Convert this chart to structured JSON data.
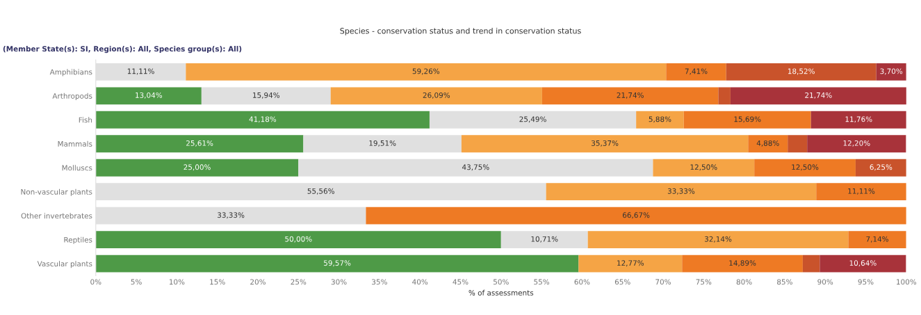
{
  "chart_data": {
    "type": "bar",
    "orientation": "horizontal",
    "stacked": true,
    "title": "Species - conservation status and trend in conservation status",
    "subtitle": "(Member State(s): SI, Region(s): All, Species group(s): All)",
    "xlabel": "% of assessments",
    "categories": [
      "Amphibians",
      "Arthropods",
      "Fish",
      "Mammals",
      "Molluscs",
      "Non-vascular plants",
      "Other invertebrates",
      "Reptiles",
      "Vascular plants"
    ],
    "series": [
      {
        "color": "#4e9a47",
        "values": [
          null,
          13.04,
          41.18,
          25.61,
          25.0,
          null,
          null,
          50.0,
          59.57
        ],
        "value_labels": [
          null,
          "13,04%",
          "41,18%",
          "25,61%",
          "25,00%",
          null,
          null,
          "50,00%",
          "59,57%"
        ]
      },
      {
        "color": "#e0e0e0",
        "values": [
          11.11,
          15.94,
          25.49,
          19.51,
          43.75,
          55.56,
          33.33,
          10.71,
          null
        ],
        "value_labels": [
          "11,11%",
          "15,94%",
          "25,49%",
          "19,51%",
          "43,75%",
          "55,56%",
          "33,33%",
          "10,71%",
          null
        ]
      },
      {
        "color": "#f5a445",
        "values": [
          59.26,
          26.09,
          5.88,
          35.37,
          12.5,
          33.33,
          null,
          32.14,
          12.77
        ],
        "value_labels": [
          "59,26%",
          "26,09%",
          "5,88%",
          "35,37%",
          "12,50%",
          "33,33%",
          null,
          "32,14%",
          "12,77%"
        ]
      },
      {
        "color": "#ee7a24",
        "values": [
          7.41,
          21.74,
          15.69,
          4.88,
          12.5,
          11.11,
          66.67,
          7.14,
          14.89
        ],
        "value_labels": [
          "7,41%",
          "21,74%",
          "15,69%",
          "4,88%",
          "12,50%",
          "11,11%",
          "66,67%",
          "7,14%",
          "14,89%"
        ]
      },
      {
        "color": "#c9532b",
        "values": [
          18.52,
          1.5,
          null,
          2.4,
          6.25,
          null,
          null,
          null,
          2.1
        ],
        "value_labels": [
          "18,52%",
          null,
          null,
          null,
          "6,25%",
          null,
          null,
          null,
          null
        ]
      },
      {
        "color": "#a8333a",
        "values": [
          3.7,
          21.74,
          11.76,
          12.2,
          null,
          null,
          null,
          null,
          10.64
        ],
        "value_labels": [
          "3,70%",
          "21,74%",
          "11,76%",
          "12,20%",
          null,
          null,
          null,
          null,
          "10,64%"
        ]
      }
    ],
    "xlim": [
      0,
      100
    ],
    "xticks": [
      {
        "value": 0,
        "label": "0%"
      },
      {
        "value": 5,
        "label": "5%"
      },
      {
        "value": 10,
        "label": "10%"
      },
      {
        "value": 15,
        "label": "15%"
      },
      {
        "value": 20,
        "label": "20%"
      },
      {
        "value": 25,
        "label": "25%"
      },
      {
        "value": 30,
        "label": "30%"
      },
      {
        "value": 35,
        "label": "35%"
      },
      {
        "value": 40,
        "label": "40%"
      },
      {
        "value": 45,
        "label": "45%"
      },
      {
        "value": 50,
        "label": "50%"
      },
      {
        "value": 55,
        "label": "55%"
      },
      {
        "value": 60,
        "label": "60%"
      },
      {
        "value": 65,
        "label": "65%"
      },
      {
        "value": 70,
        "label": "70%"
      },
      {
        "value": 75,
        "label": "75%"
      },
      {
        "value": 80,
        "label": "80%"
      },
      {
        "value": 85,
        "label": "85%"
      },
      {
        "value": 90,
        "label": "90%"
      },
      {
        "value": 95,
        "label": "95%"
      },
      {
        "value": 100,
        "label": "100%"
      }
    ],
    "grid": false,
    "legend": false
  }
}
